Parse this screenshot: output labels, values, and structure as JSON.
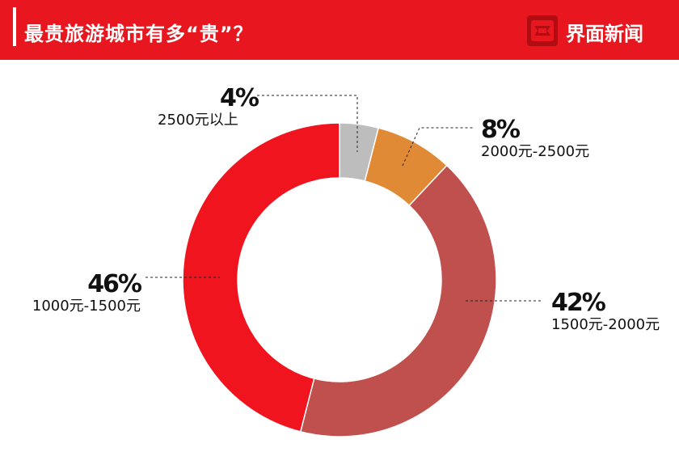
{
  "header": {
    "title": "最贵旅游城市有多“贵”？",
    "brand": "界面新闻",
    "background_color": "#e8161e"
  },
  "logo": {
    "icon": "jiemian-logo-icon"
  },
  "chart_data": {
    "type": "pie",
    "donut": true,
    "title": "最贵旅游城市有多“贵”？",
    "slices": [
      {
        "label": "2500元以上",
        "value": 4,
        "percent_label": "4%",
        "color": "#bdbdbd"
      },
      {
        "label": "2000元-2500元",
        "value": 8,
        "percent_label": "8%",
        "color": "#e08a35"
      },
      {
        "label": "1500元-2000元",
        "value": 42,
        "percent_label": "42%",
        "color": "#c0504d"
      },
      {
        "label": "1000元-1500元",
        "value": 46,
        "percent_label": "46%",
        "color": "#f0141e"
      }
    ]
  }
}
